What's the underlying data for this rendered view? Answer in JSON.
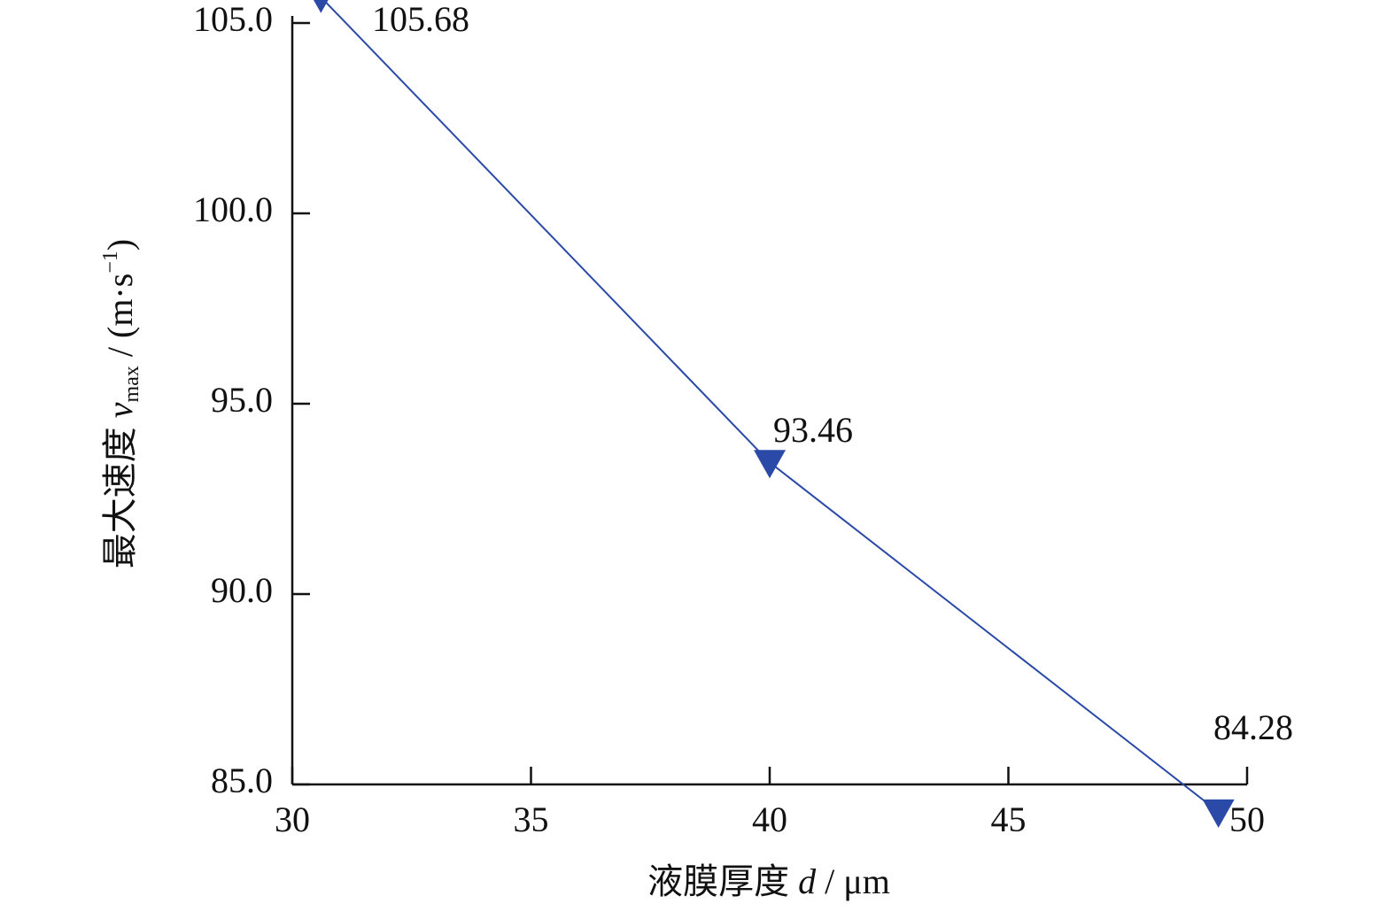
{
  "chart_data": {
    "type": "line",
    "x": [
      30.6,
      40,
      49.4
    ],
    "series": [
      {
        "name": "最大速度",
        "color": "#2b4aa8",
        "values": [
          105.68,
          93.46,
          84.28
        ]
      }
    ],
    "xlim": [
      30,
      50
    ],
    "xticks": [
      30,
      35,
      40,
      45,
      50
    ],
    "ylim": [
      85,
      105
    ],
    "yticks": [
      {
        "value": 85,
        "label": "85.0"
      },
      {
        "value": 90,
        "label": "90.0"
      },
      {
        "value": 95,
        "label": "95.0"
      },
      {
        "value": 100,
        "label": "100.0"
      },
      {
        "value": 105,
        "label": "105.0"
      }
    ],
    "xlabel": [
      "液膜厚度 ",
      "d",
      " / μm"
    ],
    "ylabel": [
      "最大速度 ",
      "v",
      "max",
      " / (m·s",
      "−1",
      ")"
    ],
    "grid": false
  }
}
